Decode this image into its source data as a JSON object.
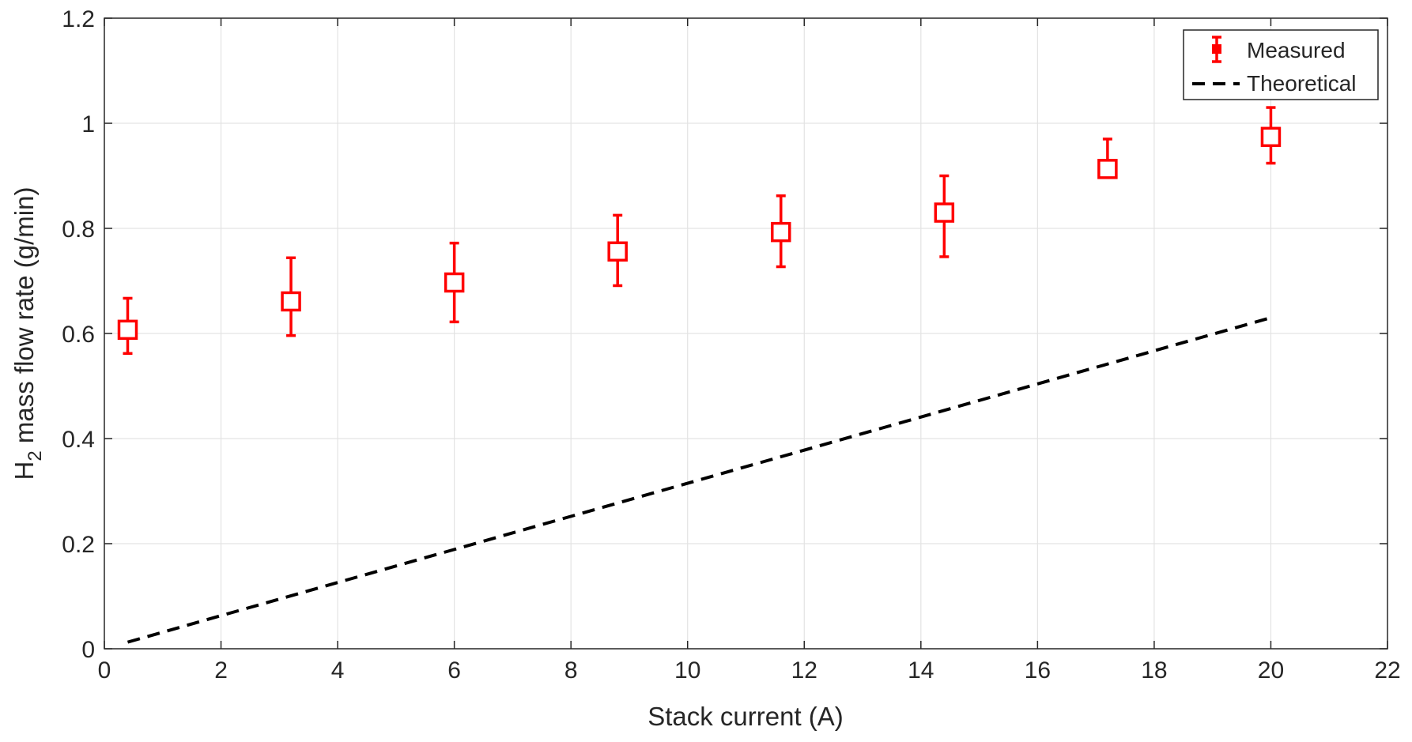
{
  "chart_data": {
    "type": "scatter",
    "xlabel": "Stack current (A)",
    "ylabel": {
      "main": "H",
      "subscript": "2",
      "rest": " mass flow rate (g/min)"
    },
    "xlim": [
      0,
      22
    ],
    "ylim": [
      0,
      1.2
    ],
    "xticks": [
      0,
      2,
      4,
      6,
      8,
      10,
      12,
      14,
      16,
      18,
      20,
      22
    ],
    "xtick_labels": [
      "0",
      "2",
      "4",
      "6",
      "8",
      "10",
      "12",
      "14",
      "16",
      "18",
      "20",
      "22"
    ],
    "yticks": [
      0,
      0.2,
      0.4,
      0.6,
      0.8,
      1.0,
      1.2
    ],
    "ytick_labels": [
      "0",
      "0.2",
      "0.4",
      "0.6",
      "0.8",
      "1",
      "1.2"
    ],
    "grid": true,
    "legend_position": "top-right",
    "series": [
      {
        "name": "Measured",
        "marker": "square",
        "color": "#ff0000",
        "error_bars": true,
        "points": [
          {
            "x": 0.4,
            "y": 0.607,
            "lower": 0.562,
            "upper": 0.667
          },
          {
            "x": 3.2,
            "y": 0.661,
            "lower": 0.596,
            "upper": 0.744
          },
          {
            "x": 6.0,
            "y": 0.697,
            "lower": 0.622,
            "upper": 0.772
          },
          {
            "x": 8.8,
            "y": 0.756,
            "lower": 0.691,
            "upper": 0.825
          },
          {
            "x": 11.6,
            "y": 0.793,
            "lower": 0.727,
            "upper": 0.862
          },
          {
            "x": 14.4,
            "y": 0.83,
            "lower": 0.746,
            "upper": 0.9
          },
          {
            "x": 17.2,
            "y": 0.913,
            "lower": 0.908,
            "upper": 0.97
          },
          {
            "x": 20.0,
            "y": 0.974,
            "lower": 0.924,
            "upper": 1.03
          }
        ]
      },
      {
        "name": "Theoretical",
        "style": "dashed",
        "color": "#000000",
        "points": [
          {
            "x": 0.4,
            "y": 0.0126
          },
          {
            "x": 20.0,
            "y": 0.63
          }
        ]
      }
    ]
  }
}
